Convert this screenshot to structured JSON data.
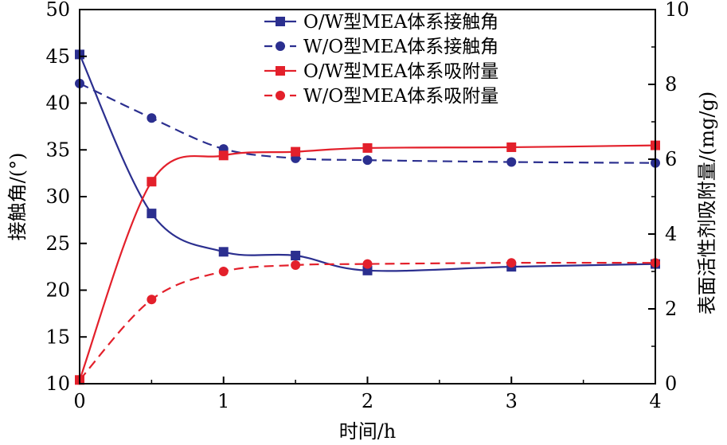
{
  "chart_data": {
    "type": "line",
    "xlabel": "时间/h",
    "ylabel_left": "接触角/(°)",
    "ylabel_right": "表面活性剂吸附量/(mg/g)",
    "xlim": [
      0,
      4
    ],
    "ylim_left": [
      10,
      50
    ],
    "ylim_right": [
      0,
      10
    ],
    "x_ticks": [
      "0",
      "1",
      "2",
      "3",
      "4"
    ],
    "y_left_ticks": [
      "10",
      "15",
      "20",
      "25",
      "30",
      "35",
      "40",
      "45",
      "50"
    ],
    "y_right_ticks": [
      "0",
      "2",
      "4",
      "6",
      "8",
      "10"
    ],
    "legend_position": "top-center",
    "series": [
      {
        "name": "O/W型MEA体系接触角",
        "axis": "left",
        "color": "#2b2f8f",
        "marker": "square",
        "dash": "solid",
        "x": [
          0,
          0.5,
          1,
          1.5,
          2,
          3,
          4
        ],
        "y": [
          45.2,
          28.2,
          24.1,
          23.7,
          22.1,
          22.5,
          22.8
        ]
      },
      {
        "name": "W/O型MEA体系接触角",
        "axis": "left",
        "color": "#2b2f8f",
        "marker": "circle",
        "dash": "dashed",
        "x": [
          0,
          0.5,
          1,
          1.5,
          2,
          3,
          4
        ],
        "y": [
          42.1,
          38.4,
          35.1,
          34.1,
          33.9,
          33.7,
          33.6
        ]
      },
      {
        "name": "O/W型MEA体系吸附量",
        "axis": "right",
        "color": "#e3202b",
        "marker": "square",
        "dash": "solid",
        "x": [
          0,
          0.5,
          1,
          1.5,
          2,
          3,
          4
        ],
        "y": [
          0.1,
          5.4,
          6.1,
          6.2,
          6.3,
          6.32,
          6.37
        ]
      },
      {
        "name": "W/O型MEA体系吸附量",
        "axis": "right",
        "color": "#e3202b",
        "marker": "circle",
        "dash": "dashed",
        "x": [
          0,
          0.5,
          1,
          1.5,
          2,
          3,
          4
        ],
        "y": [
          0.1,
          2.25,
          3.0,
          3.17,
          3.2,
          3.23,
          3.23
        ]
      }
    ]
  }
}
